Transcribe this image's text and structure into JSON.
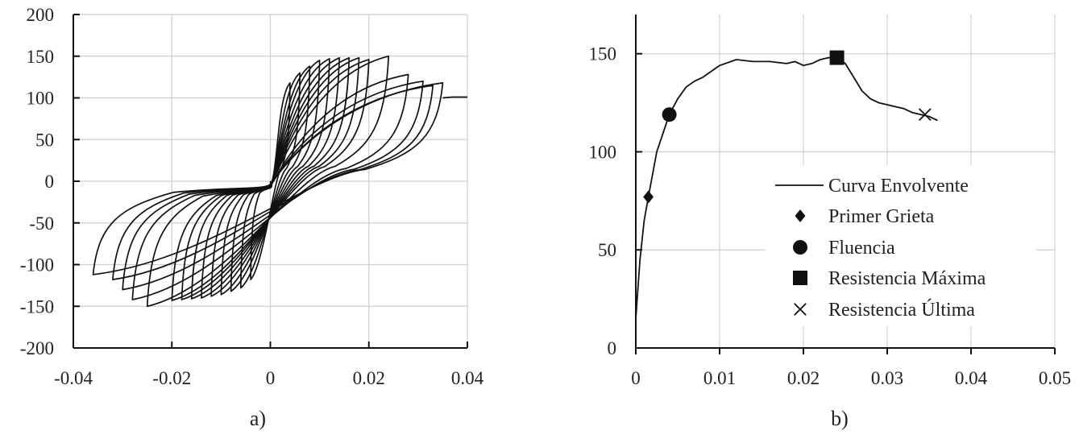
{
  "chart_data": [
    {
      "id": "a",
      "type": "line",
      "caption": "a)",
      "xlim": [
        -0.04,
        0.04
      ],
      "ylim": [
        -200,
        200
      ],
      "xticks": [
        -0.04,
        -0.02,
        0,
        0.02,
        0.04
      ],
      "xtick_labels": [
        "-0.04",
        "-0.02",
        "0",
        "0.02",
        "0.04"
      ],
      "yticks": [
        -200,
        -150,
        -100,
        -50,
        0,
        50,
        100,
        150,
        200
      ],
      "ytick_labels": [
        "-200",
        "-150",
        "-100",
        "-50",
        "0",
        "50",
        "100",
        "150",
        "200"
      ],
      "grid": true,
      "cycles": [
        {
          "max_d": 0.004,
          "max_f": 118,
          "min_d": -0.004,
          "min_f": -118
        },
        {
          "max_d": 0.006,
          "max_f": 130,
          "min_d": -0.006,
          "min_f": -128
        },
        {
          "max_d": 0.008,
          "max_f": 138,
          "min_d": -0.008,
          "min_f": -132
        },
        {
          "max_d": 0.01,
          "max_f": 145,
          "min_d": -0.01,
          "min_f": -136
        },
        {
          "max_d": 0.012,
          "max_f": 147,
          "min_d": -0.012,
          "min_f": -138
        },
        {
          "max_d": 0.014,
          "max_f": 148,
          "min_d": -0.014,
          "min_f": -140
        },
        {
          "max_d": 0.016,
          "max_f": 148,
          "min_d": -0.016,
          "min_f": -141
        },
        {
          "max_d": 0.018,
          "max_f": 148,
          "min_d": -0.018,
          "min_f": -142
        },
        {
          "max_d": 0.02,
          "max_f": 146,
          "min_d": -0.02,
          "min_f": -143
        },
        {
          "max_d": 0.024,
          "max_f": 150,
          "min_d": -0.025,
          "min_f": -150
        },
        {
          "max_d": 0.028,
          "max_f": 128,
          "min_d": -0.028,
          "min_f": -142
        },
        {
          "max_d": 0.031,
          "max_f": 120,
          "min_d": -0.03,
          "min_f": -130
        },
        {
          "max_d": 0.033,
          "max_f": 115,
          "min_d": -0.032,
          "min_f": -118
        },
        {
          "max_d": 0.035,
          "max_f": 118,
          "min_d": -0.036,
          "min_f": -112
        }
      ],
      "tail": {
        "x": [
          0.035,
          0.037,
          0.04
        ],
        "y": [
          100,
          101,
          101
        ]
      }
    },
    {
      "id": "b",
      "type": "line",
      "caption": "b)",
      "xlim": [
        0,
        0.05
      ],
      "ylim": [
        0,
        170
      ],
      "xticks": [
        0,
        0.01,
        0.02,
        0.03,
        0.04,
        0.05
      ],
      "xtick_labels": [
        "0",
        "0.01",
        "0.02",
        "0.03",
        "0.04",
        "0.05"
      ],
      "yticks": [
        0,
        50,
        100,
        150
      ],
      "ytick_labels": [
        "0",
        "50",
        "100",
        "150"
      ],
      "grid": true,
      "legend_position": "bottom-right",
      "series": [
        {
          "name": "Curva Envolvente",
          "kind": "line",
          "x": [
            0,
            0.0005,
            0.001,
            0.0015,
            0.0025,
            0.004,
            0.005,
            0.006,
            0.007,
            0.008,
            0.01,
            0.012,
            0.014,
            0.016,
            0.018,
            0.019,
            0.02,
            0.021,
            0.022,
            0.023,
            0.024,
            0.025,
            0.026,
            0.027,
            0.028,
            0.029,
            0.03,
            0.031,
            0.032,
            0.033,
            0.034,
            0.035,
            0.036
          ],
          "y": [
            15,
            45,
            65,
            77,
            100,
            119,
            127,
            133,
            136,
            138,
            144,
            147,
            146,
            146,
            145,
            146,
            144,
            145,
            147,
            148,
            148,
            145,
            138,
            131,
            127,
            125,
            124,
            123,
            122,
            120,
            119,
            118,
            116
          ]
        },
        {
          "name": "Primer Grieta",
          "kind": "marker",
          "marker": "diamond",
          "x": [
            0.0015
          ],
          "y": [
            77
          ]
        },
        {
          "name": "Fluencia",
          "kind": "marker",
          "marker": "circle",
          "x": [
            0.004
          ],
          "y": [
            119
          ]
        },
        {
          "name": "Resistencia Máxima",
          "kind": "marker",
          "marker": "square",
          "x": [
            0.024
          ],
          "y": [
            148
          ]
        },
        {
          "name": "Resistencia Última",
          "kind": "marker",
          "marker": "x",
          "x": [
            0.0345
          ],
          "y": [
            119
          ]
        }
      ]
    }
  ]
}
